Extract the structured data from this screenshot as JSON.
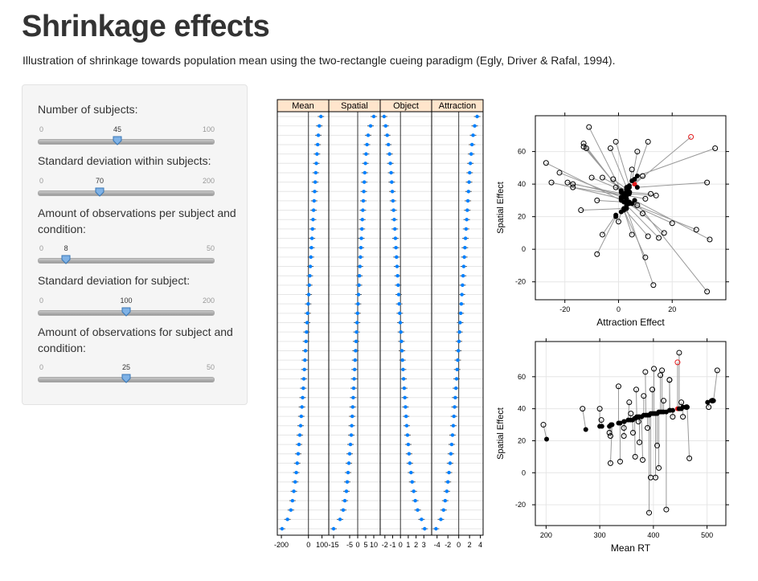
{
  "header": {
    "title": "Shrinkage effects",
    "subtitle": "Illustration of shrinkage towards population mean using the two-rectangle cueing paradigm (Egly, Driver & Rafal, 1994)."
  },
  "sliders": [
    {
      "label": "Number of subjects:",
      "min": "0",
      "max": "100",
      "value": "45",
      "frac": 0.45
    },
    {
      "label": "Standard deviation within subjects:",
      "min": "0",
      "max": "200",
      "value": "70",
      "frac": 0.35
    },
    {
      "label": "Amount of observations per subject and condition:",
      "min": "0",
      "max": "50",
      "value": "8",
      "frac": 0.16
    },
    {
      "label": "Standard deviation for subject:",
      "min": "0",
      "max": "200",
      "value": "100",
      "frac": 0.5
    },
    {
      "label": "Amount of observations for subject and condition:",
      "min": "0",
      "max": "50",
      "value": "25",
      "frac": 0.5
    }
  ],
  "colors": {
    "strip_bg": "#ffe5cc",
    "point_blue": "#0080ff",
    "highlight_red": "#e41a1c",
    "grid": "#e6e6e6"
  },
  "chart_data": [
    {
      "type": "scatter",
      "subtype": "dotplot-panels",
      "n_rows": 45,
      "panels": [
        {
          "name": "Mean",
          "xlim": [
            -230,
            150
          ],
          "ticks": [
            -200,
            0,
            100
          ],
          "values": [
            -195,
            -155,
            -130,
            -118,
            -108,
            -98,
            -90,
            -83,
            -76,
            -70,
            -64,
            -58,
            -53,
            -48,
            -43,
            -38,
            -34,
            -30,
            -26,
            -22,
            -18,
            -14,
            -10,
            -6,
            -2,
            2,
            6,
            10,
            14,
            18,
            22,
            26,
            30,
            34,
            38,
            42,
            46,
            50,
            54,
            58,
            63,
            68,
            73,
            80,
            92
          ]
        },
        {
          "name": "Spatial",
          "xlim": [
            -18,
            14
          ],
          "ticks": [
            -15,
            -5,
            0,
            5,
            10
          ],
          "values": [
            -15,
            -11,
            -9,
            -8,
            -7,
            -6.5,
            -6,
            -5.5,
            -5,
            -4.5,
            -4,
            -3.7,
            -3.4,
            -3.1,
            -2.8,
            -2.5,
            -2.2,
            -1.9,
            -1.6,
            -1.3,
            -1,
            -0.7,
            -0.4,
            -0.1,
            0.2,
            0.5,
            0.8,
            1.1,
            1.4,
            1.7,
            2,
            2.3,
            2.6,
            2.9,
            3.2,
            3.5,
            3.8,
            4.1,
            4.4,
            4.8,
            5.2,
            5.8,
            6.5,
            8,
            10
          ]
        },
        {
          "name": "Object",
          "xlim": [
            -2.6,
            4
          ],
          "ticks": [
            -2,
            -1,
            0,
            1,
            2,
            3
          ],
          "values": [
            3.1,
            2.7,
            2.2,
            1.9,
            1.7,
            1.5,
            1.35,
            1.2,
            1.1,
            1.0,
            0.9,
            0.8,
            0.72,
            0.64,
            0.56,
            0.48,
            0.4,
            0.33,
            0.26,
            0.19,
            0.12,
            0.05,
            -0.02,
            -0.09,
            -0.16,
            -0.23,
            -0.3,
            -0.37,
            -0.44,
            -0.51,
            -0.58,
            -0.65,
            -0.72,
            -0.8,
            -0.88,
            -0.96,
            -1.04,
            -1.12,
            -1.2,
            -1.3,
            -1.4,
            -1.55,
            -1.7,
            -1.9,
            -2.1
          ]
        },
        {
          "name": "Attraction",
          "xlim": [
            -5,
            4.5
          ],
          "ticks": [
            -4,
            -2,
            0,
            2,
            4
          ],
          "values": [
            -4.2,
            -3.3,
            -2.8,
            -2.5,
            -2.2,
            -2,
            -1.8,
            -1.6,
            -1.45,
            -1.3,
            -1.15,
            -1,
            -0.88,
            -0.76,
            -0.64,
            -0.52,
            -0.4,
            -0.29,
            -0.18,
            -0.07,
            0.04,
            0.15,
            0.26,
            0.37,
            0.48,
            0.59,
            0.7,
            0.81,
            0.92,
            1.03,
            1.14,
            1.25,
            1.36,
            1.47,
            1.58,
            1.69,
            1.8,
            1.91,
            2.02,
            2.15,
            2.3,
            2.45,
            2.65,
            2.95,
            3.4
          ]
        }
      ]
    },
    {
      "type": "scatter",
      "subtype": "shrinkage-arrows",
      "xlabel": "Attraction Effect",
      "ylabel": "Spatial Effect",
      "xlim": [
        -31,
        40
      ],
      "ylim": [
        -31,
        82
      ],
      "xticks": [
        -20,
        0,
        20
      ],
      "yticks": [
        -20,
        0,
        20,
        40,
        60
      ],
      "points": [
        {
          "raw": [
            27,
            69
          ],
          "shrunk": [
            6,
            40
          ],
          "highlight": true
        },
        {
          "raw": [
            -11,
            75
          ],
          "shrunk": [
            1,
            36
          ]
        },
        {
          "raw": [
            -13,
            65
          ],
          "shrunk": [
            1,
            35
          ]
        },
        {
          "raw": [
            -13,
            63
          ],
          "shrunk": [
            2,
            34
          ]
        },
        {
          "raw": [
            -12,
            62
          ],
          "shrunk": [
            2,
            33
          ]
        },
        {
          "raw": [
            -3,
            62
          ],
          "shrunk": [
            3,
            38
          ]
        },
        {
          "raw": [
            -1,
            66
          ],
          "shrunk": [
            4,
            39
          ]
        },
        {
          "raw": [
            7,
            60
          ],
          "shrunk": [
            5,
            42
          ]
        },
        {
          "raw": [
            11,
            66
          ],
          "shrunk": [
            6,
            43
          ]
        },
        {
          "raw": [
            36,
            62
          ],
          "shrunk": [
            7,
            45
          ]
        },
        {
          "raw": [
            -27,
            53
          ],
          "shrunk": [
            1,
            30
          ]
        },
        {
          "raw": [
            -22,
            47
          ],
          "shrunk": [
            1,
            32
          ]
        },
        {
          "raw": [
            -25,
            41
          ],
          "shrunk": [
            1,
            31
          ]
        },
        {
          "raw": [
            -19,
            41
          ],
          "shrunk": [
            2,
            33
          ]
        },
        {
          "raw": [
            -17,
            40
          ],
          "shrunk": [
            2,
            34
          ]
        },
        {
          "raw": [
            -17,
            38
          ],
          "shrunk": [
            2,
            33
          ]
        },
        {
          "raw": [
            -10,
            44
          ],
          "shrunk": [
            3,
            35
          ]
        },
        {
          "raw": [
            -8,
            30
          ],
          "shrunk": [
            2,
            29
          ]
        },
        {
          "raw": [
            -14,
            24
          ],
          "shrunk": [
            2,
            25
          ]
        },
        {
          "raw": [
            -6,
            44
          ],
          "shrunk": [
            3,
            36
          ]
        },
        {
          "raw": [
            -2,
            43
          ],
          "shrunk": [
            3,
            37
          ]
        },
        {
          "raw": [
            5,
            49
          ],
          "shrunk": [
            4,
            38
          ]
        },
        {
          "raw": [
            9,
            45
          ],
          "shrunk": [
            4,
            38
          ]
        },
        {
          "raw": [
            12,
            34
          ],
          "shrunk": [
            4,
            35
          ]
        },
        {
          "raw": [
            10,
            31
          ],
          "shrunk": [
            3,
            33
          ]
        },
        {
          "raw": [
            14,
            33
          ],
          "shrunk": [
            4,
            34
          ]
        },
        {
          "raw": [
            33,
            41
          ],
          "shrunk": [
            7,
            38
          ]
        },
        {
          "raw": [
            29,
            12
          ],
          "shrunk": [
            5,
            28
          ]
        },
        {
          "raw": [
            34,
            6
          ],
          "shrunk": [
            6,
            30
          ]
        },
        {
          "raw": [
            20,
            16
          ],
          "shrunk": [
            4,
            28
          ]
        },
        {
          "raw": [
            17,
            10
          ],
          "shrunk": [
            4,
            29
          ]
        },
        {
          "raw": [
            15,
            7
          ],
          "shrunk": [
            3,
            27
          ]
        },
        {
          "raw": [
            11,
            8
          ],
          "shrunk": [
            2,
            25
          ]
        },
        {
          "raw": [
            9,
            22
          ],
          "shrunk": [
            3,
            29
          ]
        },
        {
          "raw": [
            5,
            9
          ],
          "shrunk": [
            2,
            24
          ]
        },
        {
          "raw": [
            0,
            17
          ],
          "shrunk": [
            1,
            23
          ]
        },
        {
          "raw": [
            -6,
            9
          ],
          "shrunk": [
            -1,
            21
          ]
        },
        {
          "raw": [
            -8,
            -3
          ],
          "shrunk": [
            -1,
            20
          ]
        },
        {
          "raw": [
            13,
            -22
          ],
          "shrunk": [
            3,
            25
          ]
        },
        {
          "raw": [
            10,
            -5
          ],
          "shrunk": [
            2,
            24
          ]
        },
        {
          "raw": [
            33,
            -26
          ],
          "shrunk": [
            6,
            30
          ]
        },
        {
          "raw": [
            2,
            31
          ],
          "shrunk": [
            2,
            32
          ]
        },
        {
          "raw": [
            -1,
            38
          ],
          "shrunk": [
            2,
            34
          ]
        },
        {
          "raw": [
            7,
            27
          ],
          "shrunk": [
            3,
            31
          ]
        },
        {
          "raw": [
            4,
            35
          ],
          "shrunk": [
            3,
            36
          ]
        }
      ]
    },
    {
      "type": "scatter",
      "subtype": "shrinkage-arrows",
      "xlabel": "Mean RT",
      "ylabel": "Spatial Effect",
      "xlim": [
        180,
        535
      ],
      "ylim": [
        -33,
        82
      ],
      "xticks": [
        200,
        300,
        400,
        500
      ],
      "yticks": [
        -20,
        0,
        20,
        40,
        60
      ],
      "points": [
        {
          "raw": [
            445,
            69
          ],
          "shrunk": [
            445,
            40
          ],
          "highlight": true
        },
        {
          "raw": [
            195,
            30
          ],
          "shrunk": [
            201,
            21
          ]
        },
        {
          "raw": [
            268,
            40
          ],
          "shrunk": [
            274,
            27
          ]
        },
        {
          "raw": [
            300,
            40
          ],
          "shrunk": [
            300,
            29
          ]
        },
        {
          "raw": [
            318,
            25
          ],
          "shrunk": [
            318,
            29
          ]
        },
        {
          "raw": [
            320,
            23
          ],
          "shrunk": [
            321,
            30
          ]
        },
        {
          "raw": [
            320,
            6
          ],
          "shrunk": [
            323,
            30
          ]
        },
        {
          "raw": [
            335,
            54
          ],
          "shrunk": [
            335,
            31
          ]
        },
        {
          "raw": [
            338,
            7
          ],
          "shrunk": [
            338,
            31
          ]
        },
        {
          "raw": [
            345,
            28
          ],
          "shrunk": [
            345,
            32
          ]
        },
        {
          "raw": [
            355,
            44
          ],
          "shrunk": [
            353,
            33
          ]
        },
        {
          "raw": [
            358,
            37
          ],
          "shrunk": [
            357,
            33
          ]
        },
        {
          "raw": [
            362,
            25
          ],
          "shrunk": [
            361,
            33
          ]
        },
        {
          "raw": [
            366,
            10
          ],
          "shrunk": [
            365,
            34
          ]
        },
        {
          "raw": [
            368,
            52
          ],
          "shrunk": [
            369,
            35
          ]
        },
        {
          "raw": [
            372,
            32
          ],
          "shrunk": [
            372,
            35
          ]
        },
        {
          "raw": [
            374,
            19
          ],
          "shrunk": [
            374,
            35
          ]
        },
        {
          "raw": [
            380,
            8
          ],
          "shrunk": [
            378,
            35
          ]
        },
        {
          "raw": [
            382,
            48
          ],
          "shrunk": [
            382,
            36
          ]
        },
        {
          "raw": [
            385,
            63
          ],
          "shrunk": [
            386,
            36
          ]
        },
        {
          "raw": [
            389,
            28
          ],
          "shrunk": [
            389,
            36
          ]
        },
        {
          "raw": [
            392,
            -25
          ],
          "shrunk": [
            392,
            36
          ]
        },
        {
          "raw": [
            395,
            -3
          ],
          "shrunk": [
            395,
            37
          ]
        },
        {
          "raw": [
            398,
            52
          ],
          "shrunk": [
            398,
            37
          ]
        },
        {
          "raw": [
            401,
            65
          ],
          "shrunk": [
            401,
            37
          ]
        },
        {
          "raw": [
            404,
            -3
          ],
          "shrunk": [
            404,
            37
          ]
        },
        {
          "raw": [
            407,
            17
          ],
          "shrunk": [
            407,
            37
          ]
        },
        {
          "raw": [
            410,
            3
          ],
          "shrunk": [
            410,
            38
          ]
        },
        {
          "raw": [
            413,
            61
          ],
          "shrunk": [
            413,
            38
          ]
        },
        {
          "raw": [
            416,
            64
          ],
          "shrunk": [
            416,
            38
          ]
        },
        {
          "raw": [
            419,
            45
          ],
          "shrunk": [
            419,
            38
          ]
        },
        {
          "raw": [
            424,
            -23
          ],
          "shrunk": [
            424,
            38
          ]
        },
        {
          "raw": [
            430,
            58
          ],
          "shrunk": [
            430,
            39
          ]
        },
        {
          "raw": [
            436,
            35
          ],
          "shrunk": [
            436,
            39
          ]
        },
        {
          "raw": [
            448,
            75
          ],
          "shrunk": [
            448,
            40
          ]
        },
        {
          "raw": [
            452,
            44
          ],
          "shrunk": [
            452,
            40
          ]
        },
        {
          "raw": [
            455,
            35
          ],
          "shrunk": [
            455,
            41
          ]
        },
        {
          "raw": [
            462,
            41
          ],
          "shrunk": [
            460,
            41
          ]
        },
        {
          "raw": [
            467,
            9
          ],
          "shrunk": [
            463,
            41
          ]
        },
        {
          "raw": [
            503,
            41
          ],
          "shrunk": [
            501,
            44
          ]
        },
        {
          "raw": [
            510,
            45
          ],
          "shrunk": [
            508,
            45
          ]
        },
        {
          "raw": [
            519,
            64
          ],
          "shrunk": [
            512,
            45
          ]
        },
        {
          "raw": [
            430,
            58
          ],
          "shrunk": [
            431,
            39
          ]
        },
        {
          "raw": [
            303,
            33
          ],
          "shrunk": [
            304,
            29
          ]
        },
        {
          "raw": [
            345,
            23
          ],
          "shrunk": [
            346,
            32
          ]
        }
      ]
    }
  ]
}
